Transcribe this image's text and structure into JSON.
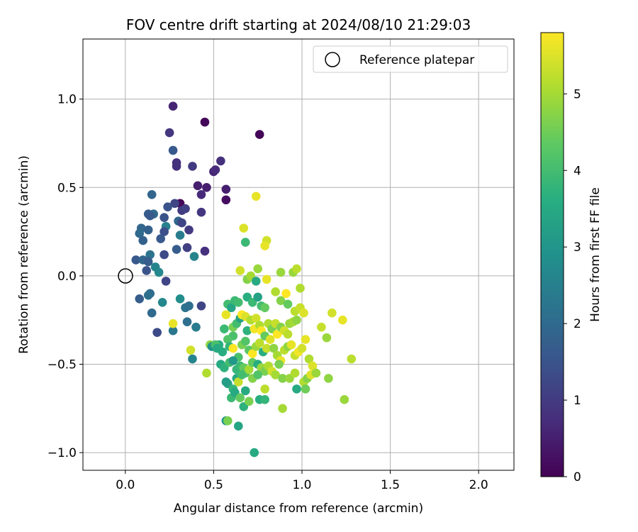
{
  "chart_data": {
    "type": "scatter",
    "title": "FOV centre drift starting at 2024/08/10 21:29:03",
    "xlabel": "Angular distance from reference (arcmin)",
    "ylabel": "Rotation from reference (arcmin)",
    "xlim": [
      -0.24,
      2.2
    ],
    "ylim": [
      -1.1,
      1.34
    ],
    "xticks": [
      "0.0",
      "0.5",
      "1.0",
      "1.5",
      "2.0"
    ],
    "xtick_values": [
      0,
      0.5,
      1.0,
      1.5,
      2.0
    ],
    "yticks": [
      "1.0",
      "0.5",
      "0.0",
      "−0.5",
      "−1.0"
    ],
    "ytick_values": [
      1.0,
      0.5,
      0.0,
      -0.5,
      -1.0
    ],
    "grid": true,
    "legend": {
      "position": "top-right",
      "label": "Reference platepar"
    },
    "reference_point": [
      0,
      0
    ],
    "colorbar": {
      "label": "Hours from first FF file",
      "colormap": "viridis",
      "range": [
        0,
        5.8
      ],
      "ticks": [
        "0",
        "1",
        "2",
        "3",
        "4",
        "5"
      ],
      "tick_values": [
        0,
        1,
        2,
        3,
        4,
        5
      ]
    },
    "points": [
      [
        0.27,
        0.96,
        0.6
      ],
      [
        0.45,
        0.87,
        0.1
      ],
      [
        0.76,
        0.8,
        0.05
      ],
      [
        0.25,
        0.81,
        0.9
      ],
      [
        0.27,
        0.71,
        1.6
      ],
      [
        0.54,
        0.65,
        0.8
      ],
      [
        0.29,
        0.64,
        0.8
      ],
      [
        0.29,
        0.62,
        0.8
      ],
      [
        0.38,
        0.62,
        1.0
      ],
      [
        0.5,
        0.59,
        0.6
      ],
      [
        0.51,
        0.6,
        0.7
      ],
      [
        0.41,
        0.51,
        0.5
      ],
      [
        0.46,
        0.5,
        0.5
      ],
      [
        0.57,
        0.49,
        0.5
      ],
      [
        0.43,
        0.46,
        0.7
      ],
      [
        0.57,
        0.43,
        0.2
      ],
      [
        0.15,
        0.46,
        1.9
      ],
      [
        0.31,
        0.41,
        0.1
      ],
      [
        0.28,
        0.41,
        1.2
      ],
      [
        0.24,
        0.39,
        1.5
      ],
      [
        0.32,
        0.37,
        1.0
      ],
      [
        0.34,
        0.38,
        1.1
      ],
      [
        0.43,
        0.36,
        0.9
      ],
      [
        0.13,
        0.35,
        1.7
      ],
      [
        0.16,
        0.35,
        2.0
      ],
      [
        0.14,
        0.34,
        1.6
      ],
      [
        0.22,
        0.33,
        1.5
      ],
      [
        0.3,
        0.31,
        1.9
      ],
      [
        0.32,
        0.3,
        1.2
      ],
      [
        0.23,
        0.28,
        2.5
      ],
      [
        0.09,
        0.27,
        1.9
      ],
      [
        0.13,
        0.26,
        1.8
      ],
      [
        0.22,
        0.25,
        1.4
      ],
      [
        0.31,
        0.23,
        2.4
      ],
      [
        0.08,
        0.24,
        2.0
      ],
      [
        0.36,
        0.26,
        1.0
      ],
      [
        0.2,
        0.21,
        1.6
      ],
      [
        0.1,
        0.2,
        1.8
      ],
      [
        0.35,
        0.16,
        1.1
      ],
      [
        0.29,
        0.15,
        1.7
      ],
      [
        0.45,
        0.14,
        0.8
      ],
      [
        0.14,
        0.12,
        2.2
      ],
      [
        0.22,
        0.12,
        1.3
      ],
      [
        0.39,
        0.11,
        2.6
      ],
      [
        0.06,
        0.09,
        1.6
      ],
      [
        0.1,
        0.09,
        1.9
      ],
      [
        0.13,
        0.08,
        1.7
      ],
      [
        0.17,
        0.05,
        2.6
      ],
      [
        0.12,
        0.03,
        1.5
      ],
      [
        0.19,
        0.02,
        2.7
      ],
      [
        0.23,
        -0.03,
        1.2
      ],
      [
        0.08,
        -0.13,
        1.7
      ],
      [
        0.14,
        -0.1,
        2.0
      ],
      [
        0.13,
        -0.11,
        2.1
      ],
      [
        0.31,
        -0.13,
        2.8
      ],
      [
        0.21,
        -0.15,
        2.7
      ],
      [
        0.34,
        -0.18,
        2.2
      ],
      [
        0.36,
        -0.17,
        2.1
      ],
      [
        0.43,
        -0.17,
        1.2
      ],
      [
        0.15,
        -0.21,
        2.0
      ],
      [
        0.35,
        -0.26,
        2.1
      ],
      [
        0.4,
        -0.29,
        2.4
      ],
      [
        0.18,
        -0.32,
        1.3
      ],
      [
        0.27,
        -0.31,
        2.3
      ],
      [
        0.27,
        -0.27,
        5.6
      ],
      [
        0.37,
        -0.42,
        5.4
      ],
      [
        0.38,
        -0.47,
        2.6
      ],
      [
        0.46,
        -0.55,
        5.1
      ],
      [
        0.48,
        -0.39,
        4.8
      ],
      [
        0.49,
        -0.4,
        3.0
      ],
      [
        0.74,
        0.45,
        5.6
      ],
      [
        0.67,
        0.27,
        5.5
      ],
      [
        0.68,
        0.19,
        3.9
      ],
      [
        0.8,
        0.2,
        5.4
      ],
      [
        0.79,
        0.17,
        5.6
      ],
      [
        0.65,
        0.03,
        5.4
      ],
      [
        0.69,
        -0.02,
        4.7
      ],
      [
        0.71,
        0.0,
        5.0
      ],
      [
        0.74,
        -0.03,
        3.5
      ],
      [
        0.75,
        0.04,
        4.9
      ],
      [
        0.8,
        -0.02,
        5.6
      ],
      [
        0.88,
        0.02,
        4.9
      ],
      [
        0.95,
        0.02,
        4.9
      ],
      [
        0.97,
        0.04,
        5.2
      ],
      [
        0.99,
        -0.07,
        5.1
      ],
      [
        0.58,
        -0.16,
        4.0
      ],
      [
        0.6,
        -0.18,
        3.4
      ],
      [
        0.62,
        -0.14,
        3.9
      ],
      [
        0.64,
        -0.15,
        4.0
      ],
      [
        0.69,
        -0.12,
        3.6
      ],
      [
        0.72,
        -0.15,
        3.9
      ],
      [
        0.75,
        -0.12,
        3.3
      ],
      [
        0.77,
        -0.17,
        4.0
      ],
      [
        0.79,
        -0.18,
        4.4
      ],
      [
        0.85,
        -0.09,
        5.1
      ],
      [
        0.88,
        -0.14,
        4.7
      ],
      [
        0.91,
        -0.1,
        5.8
      ],
      [
        0.92,
        -0.16,
        4.4
      ],
      [
        0.96,
        -0.2,
        5.2
      ],
      [
        0.99,
        -0.18,
        5.3
      ],
      [
        1.01,
        -0.21,
        5.5
      ],
      [
        1.17,
        -0.21,
        5.4
      ],
      [
        1.23,
        -0.25,
        5.6
      ],
      [
        1.11,
        -0.29,
        5.3
      ],
      [
        1.14,
        -0.35,
        4.9
      ],
      [
        0.57,
        -0.22,
        5.6
      ],
      [
        0.61,
        -0.29,
        4.6
      ],
      [
        0.61,
        -0.34,
        4.1
      ],
      [
        0.63,
        -0.27,
        4.0
      ],
      [
        0.65,
        -0.24,
        3.3
      ],
      [
        0.66,
        -0.22,
        5.8
      ],
      [
        0.68,
        -0.23,
        5.5
      ],
      [
        0.69,
        -0.31,
        3.7
      ],
      [
        0.71,
        -0.25,
        5.1
      ],
      [
        0.73,
        -0.3,
        5.7
      ],
      [
        0.74,
        -0.24,
        5.4
      ],
      [
        0.76,
        -0.28,
        5.1
      ],
      [
        0.77,
        -0.31,
        5.8
      ],
      [
        0.79,
        -0.34,
        4.4
      ],
      [
        0.81,
        -0.27,
        5.1
      ],
      [
        0.83,
        -0.3,
        4.6
      ],
      [
        0.85,
        -0.27,
        5.3
      ],
      [
        0.86,
        -0.33,
        5.8
      ],
      [
        0.88,
        -0.29,
        4.7
      ],
      [
        0.9,
        -0.31,
        5.4
      ],
      [
        0.92,
        -0.33,
        5.2
      ],
      [
        0.93,
        -0.27,
        4.9
      ],
      [
        0.95,
        -0.26,
        5.0
      ],
      [
        0.97,
        -0.25,
        4.8
      ],
      [
        0.56,
        -0.3,
        3.9
      ],
      [
        0.58,
        -0.36,
        4.2
      ],
      [
        0.59,
        -0.4,
        3.8
      ],
      [
        0.61,
        -0.41,
        5.8
      ],
      [
        0.55,
        -0.43,
        3.6
      ],
      [
        0.53,
        -0.39,
        3.6
      ],
      [
        0.51,
        -0.39,
        4.1
      ],
      [
        0.64,
        -0.46,
        4.1
      ],
      [
        0.66,
        -0.39,
        4.6
      ],
      [
        0.68,
        -0.37,
        4.2
      ],
      [
        0.7,
        -0.42,
        4.3
      ],
      [
        0.72,
        -0.44,
        5.8
      ],
      [
        0.74,
        -0.4,
        4.9
      ],
      [
        0.76,
        -0.38,
        5.2
      ],
      [
        0.78,
        -0.43,
        3.6
      ],
      [
        0.8,
        -0.41,
        5.3
      ],
      [
        0.82,
        -0.36,
        5.5
      ],
      [
        0.84,
        -0.41,
        4.8
      ],
      [
        0.86,
        -0.45,
        5.0
      ],
      [
        0.88,
        -0.48,
        5.6
      ],
      [
        0.9,
        -0.42,
        5.2
      ],
      [
        0.92,
        -0.4,
        4.8
      ],
      [
        0.94,
        -0.39,
        5.6
      ],
      [
        0.96,
        -0.45,
        5.3
      ],
      [
        0.98,
        -0.43,
        5.7
      ],
      [
        1.0,
        -0.41,
        5.4
      ],
      [
        1.02,
        -0.36,
        5.6
      ],
      [
        1.04,
        -0.47,
        5.1
      ],
      [
        1.06,
        -0.51,
        5.5
      ],
      [
        0.54,
        -0.5,
        3.5
      ],
      [
        0.56,
        -0.52,
        3.7
      ],
      [
        0.59,
        -0.49,
        4.0
      ],
      [
        0.63,
        -0.53,
        3.8
      ],
      [
        0.65,
        -0.51,
        3.9
      ],
      [
        0.67,
        -0.52,
        4.4
      ],
      [
        0.68,
        -0.55,
        4.2
      ],
      [
        0.7,
        -0.53,
        5.0
      ],
      [
        0.72,
        -0.49,
        4.4
      ],
      [
        0.75,
        -0.5,
        3.6
      ],
      [
        0.77,
        -0.52,
        4.9
      ],
      [
        0.79,
        -0.54,
        4.6
      ],
      [
        0.81,
        -0.51,
        5.1
      ],
      [
        0.83,
        -0.54,
        5.4
      ],
      [
        0.85,
        -0.56,
        5.0
      ],
      [
        0.87,
        -0.5,
        4.6
      ],
      [
        0.89,
        -0.58,
        4.7
      ],
      [
        0.93,
        -0.58,
        4.9
      ],
      [
        0.96,
        -0.55,
        5.1
      ],
      [
        0.97,
        -0.64,
        3.5
      ],
      [
        1.01,
        -0.6,
        5.1
      ],
      [
        1.03,
        -0.58,
        4.7
      ],
      [
        1.05,
        -0.56,
        5.5
      ],
      [
        1.08,
        -0.55,
        4.9
      ],
      [
        1.15,
        -0.58,
        4.8
      ],
      [
        1.28,
        -0.47,
        5.2
      ],
      [
        1.02,
        -0.64,
        4.5
      ],
      [
        0.58,
        -0.61,
        3.4
      ],
      [
        0.61,
        -0.64,
        3.8
      ],
      [
        0.63,
        -0.58,
        3.5
      ],
      [
        0.64,
        -0.6,
        5.3
      ],
      [
        0.66,
        -0.56,
        4.0
      ],
      [
        0.68,
        -0.65,
        3.5
      ],
      [
        0.72,
        -0.58,
        4.7
      ],
      [
        0.75,
        -0.56,
        4.2
      ],
      [
        0.79,
        -0.64,
        5.2
      ],
      [
        0.6,
        -0.69,
        3.9
      ],
      [
        0.62,
        -0.66,
        3.5
      ],
      [
        0.65,
        -0.69,
        4.4
      ],
      [
        0.67,
        -0.74,
        3.7
      ],
      [
        0.7,
        -0.71,
        4.6
      ],
      [
        0.76,
        -0.7,
        3.6
      ],
      [
        0.79,
        -0.7,
        3.8
      ],
      [
        0.89,
        -0.75,
        5.0
      ],
      [
        0.57,
        -0.82,
        3.0
      ],
      [
        0.58,
        -0.82,
        4.6
      ],
      [
        0.64,
        -0.85,
        3.4
      ],
      [
        0.73,
        -1.0,
        3.5
      ],
      [
        1.24,
        -0.7,
        4.9
      ],
      [
        0.57,
        -0.6,
        3.2
      ],
      [
        0.52,
        -0.41,
        3.5
      ],
      [
        0.61,
        -0.48,
        3.1
      ]
    ]
  }
}
